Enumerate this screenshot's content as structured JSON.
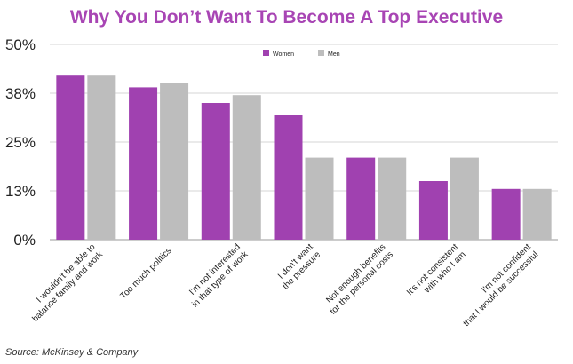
{
  "chart_data": {
    "type": "bar",
    "title": "Why You Don’t Want To Become A Top Executive",
    "categories": [
      [
        "I wouldn't be able to",
        "balance family and work"
      ],
      [
        "Too much politics"
      ],
      [
        "I'm not interested",
        "in that type of work"
      ],
      [
        "I don't want",
        "the pressure"
      ],
      [
        "Not enough benefits",
        "for the personal costs"
      ],
      [
        "It's not consistent",
        "with who I am"
      ],
      [
        "I'm not confident",
        "that I would be successful"
      ]
    ],
    "series": [
      {
        "name": "Women",
        "color": "#a041b0",
        "values": [
          42,
          39,
          35,
          32,
          21,
          15,
          13
        ]
      },
      {
        "name": "Men",
        "color": "#bdbdbd",
        "values": [
          42,
          40,
          37,
          21,
          21,
          21,
          13
        ]
      }
    ],
    "ylim": [
      0,
      50
    ],
    "yticks": [
      {
        "value": 0,
        "label": "0%"
      },
      {
        "value": 12.5,
        "label": "13%"
      },
      {
        "value": 25,
        "label": "25%"
      },
      {
        "value": 37.5,
        "label": "38%"
      },
      {
        "value": 50,
        "label": "50%"
      }
    ],
    "legend_position": "top-center",
    "grid": true,
    "xlabel": "",
    "ylabel": ""
  },
  "source": "Source: McKinsey & Company"
}
